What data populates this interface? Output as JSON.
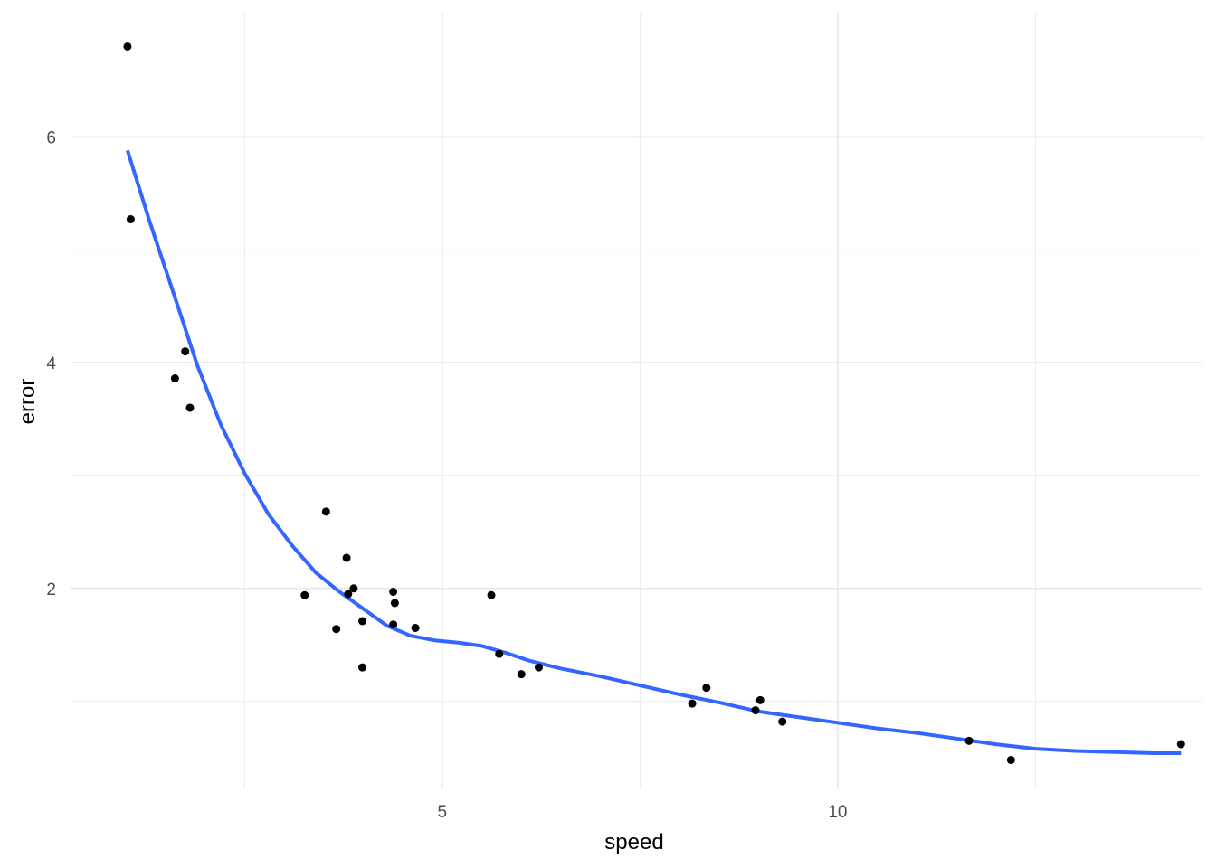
{
  "chart_data": {
    "type": "scatter",
    "title": "",
    "xlabel": "speed",
    "ylabel": "error",
    "xlim": [
      0.3,
      14.6
    ],
    "ylim": [
      0.22,
      7.1
    ],
    "x_ticks": [
      5,
      10
    ],
    "y_ticks": [
      2,
      4,
      6
    ],
    "x_minor_ticks": [
      2.5,
      7.5,
      12.5
    ],
    "y_minor_ticks": [
      1,
      3,
      5,
      7
    ],
    "grid": true,
    "legend": "none",
    "colors": {
      "points": "#000000",
      "smooth": "#3366FF",
      "grid": "#EBEBEB"
    },
    "points": [
      {
        "x": 1.02,
        "y": 6.8
      },
      {
        "x": 1.06,
        "y": 5.27
      },
      {
        "x": 1.62,
        "y": 3.86
      },
      {
        "x": 1.75,
        "y": 4.1
      },
      {
        "x": 1.81,
        "y": 3.6
      },
      {
        "x": 3.26,
        "y": 1.94
      },
      {
        "x": 3.53,
        "y": 2.68
      },
      {
        "x": 3.66,
        "y": 1.64
      },
      {
        "x": 3.79,
        "y": 2.27
      },
      {
        "x": 3.81,
        "y": 1.95
      },
      {
        "x": 3.88,
        "y": 2.0
      },
      {
        "x": 3.99,
        "y": 1.3
      },
      {
        "x": 3.99,
        "y": 1.71
      },
      {
        "x": 4.38,
        "y": 1.97
      },
      {
        "x": 4.38,
        "y": 1.68
      },
      {
        "x": 4.4,
        "y": 1.87
      },
      {
        "x": 4.66,
        "y": 1.65
      },
      {
        "x": 5.62,
        "y": 1.94
      },
      {
        "x": 5.72,
        "y": 1.42
      },
      {
        "x": 6.0,
        "y": 1.24
      },
      {
        "x": 6.22,
        "y": 1.3
      },
      {
        "x": 8.16,
        "y": 0.98
      },
      {
        "x": 8.34,
        "y": 1.12
      },
      {
        "x": 8.96,
        "y": 0.92
      },
      {
        "x": 9.02,
        "y": 1.01
      },
      {
        "x": 9.3,
        "y": 0.82
      },
      {
        "x": 11.66,
        "y": 0.65
      },
      {
        "x": 12.19,
        "y": 0.48
      },
      {
        "x": 14.34,
        "y": 0.62
      }
    ],
    "smooth": [
      {
        "x": 1.02,
        "y": 5.88
      },
      {
        "x": 1.3,
        "y": 5.25
      },
      {
        "x": 1.6,
        "y": 4.62
      },
      {
        "x": 1.9,
        "y": 3.98
      },
      {
        "x": 2.2,
        "y": 3.45
      },
      {
        "x": 2.5,
        "y": 3.02
      },
      {
        "x": 2.8,
        "y": 2.66
      },
      {
        "x": 3.1,
        "y": 2.38
      },
      {
        "x": 3.4,
        "y": 2.14
      },
      {
        "x": 3.7,
        "y": 1.97
      },
      {
        "x": 4.0,
        "y": 1.82
      },
      {
        "x": 4.3,
        "y": 1.67
      },
      {
        "x": 4.6,
        "y": 1.58
      },
      {
        "x": 4.9,
        "y": 1.54
      },
      {
        "x": 5.2,
        "y": 1.52
      },
      {
        "x": 5.5,
        "y": 1.49
      },
      {
        "x": 5.8,
        "y": 1.43
      },
      {
        "x": 6.1,
        "y": 1.36
      },
      {
        "x": 6.5,
        "y": 1.29
      },
      {
        "x": 7.0,
        "y": 1.22
      },
      {
        "x": 7.5,
        "y": 1.14
      },
      {
        "x": 8.0,
        "y": 1.06
      },
      {
        "x": 8.5,
        "y": 0.99
      },
      {
        "x": 9.0,
        "y": 0.91
      },
      {
        "x": 9.5,
        "y": 0.86
      },
      {
        "x": 10.0,
        "y": 0.81
      },
      {
        "x": 10.5,
        "y": 0.76
      },
      {
        "x": 11.0,
        "y": 0.72
      },
      {
        "x": 11.5,
        "y": 0.67
      },
      {
        "x": 12.0,
        "y": 0.62
      },
      {
        "x": 12.5,
        "y": 0.58
      },
      {
        "x": 13.0,
        "y": 0.56
      },
      {
        "x": 13.5,
        "y": 0.55
      },
      {
        "x": 14.0,
        "y": 0.54
      },
      {
        "x": 14.34,
        "y": 0.54
      }
    ]
  }
}
